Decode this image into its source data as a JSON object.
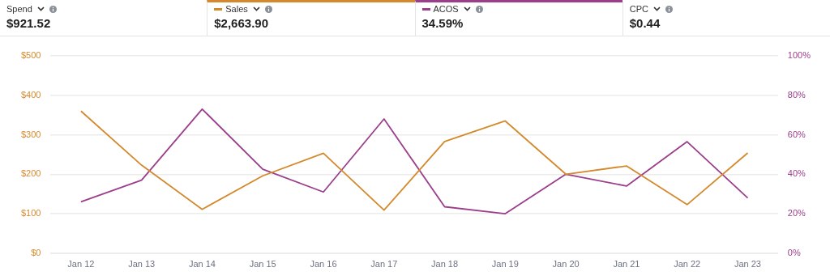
{
  "chart_data": {
    "type": "line",
    "categories": [
      "Jan 12",
      "Jan 13",
      "Jan 14",
      "Jan 15",
      "Jan 16",
      "Jan 17",
      "Jan 18",
      "Jan 19",
      "Jan 20",
      "Jan 21",
      "Jan 22",
      "Jan 23"
    ],
    "series": [
      {
        "name": "Sales",
        "color": "#d4892c",
        "values": [
          360,
          223,
          111,
          196,
          253,
          109,
          283,
          335,
          200,
          221,
          123,
          254
        ]
      },
      {
        "name": "ACOS",
        "color": "#9b3f8c",
        "axis": "y2",
        "values": [
          26,
          37,
          73,
          42.5,
          31,
          68,
          23.5,
          20,
          40,
          34,
          56.5,
          28
        ]
      }
    ],
    "ylim": [
      0,
      500
    ],
    "yticks": [
      {
        "value": 0,
        "label": "$0"
      },
      {
        "value": 100,
        "label": "$100"
      },
      {
        "value": 200,
        "label": "$200"
      },
      {
        "value": 300,
        "label": "$300"
      },
      {
        "value": 400,
        "label": "$400"
      },
      {
        "value": 500,
        "label": "$500"
      }
    ],
    "y2lim": [
      0,
      100
    ],
    "y2ticks": [
      {
        "value": 0,
        "label": "0%"
      },
      {
        "value": 20,
        "label": "20%"
      },
      {
        "value": 40,
        "label": "40%"
      },
      {
        "value": 60,
        "label": "60%"
      },
      {
        "value": 80,
        "label": "80%"
      },
      {
        "value": 100,
        "label": "100%"
      }
    ],
    "annotations": [
      "Spend",
      "$921.52",
      "$2,663.90",
      "34.59%",
      "CPC",
      "$0.44"
    ],
    "grid": "y",
    "legend": "top",
    "marker": "none",
    "line_style": "solid"
  }
}
